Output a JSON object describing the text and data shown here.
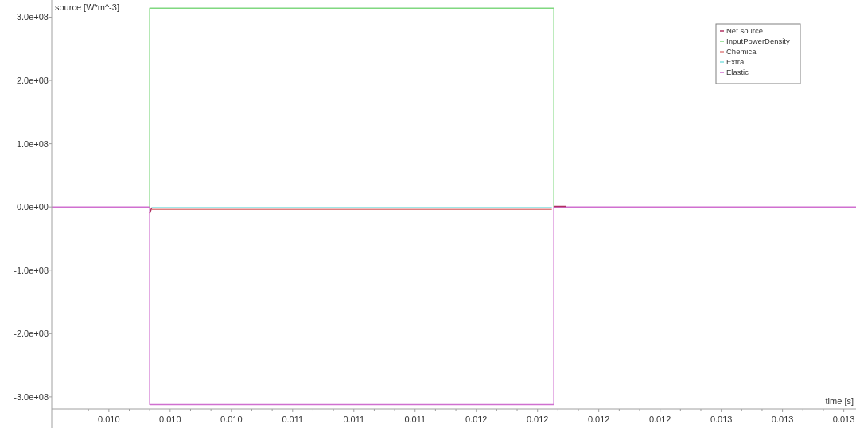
{
  "chart_data": {
    "type": "line",
    "xlabel": "time [s]",
    "ylabel": "source [W*m^-3]",
    "legend": "top right",
    "marker": "none",
    "line_style": "solid",
    "grid": false,
    "xlim": [
      0.00952,
      0.01346
    ],
    "ylim": [
      -319000000,
      327000000
    ],
    "xticks": [
      {
        "value": 0.0096,
        "label": null
      },
      {
        "value": 0.0097,
        "label": null
      },
      {
        "value": 0.0098,
        "label": "0.010"
      },
      {
        "value": 0.0099,
        "label": null
      },
      {
        "value": 0.01,
        "label": null
      },
      {
        "value": 0.0101,
        "label": "0.010"
      },
      {
        "value": 0.0102,
        "label": null
      },
      {
        "value": 0.0103,
        "label": null
      },
      {
        "value": 0.0104,
        "label": "0.010"
      },
      {
        "value": 0.0105,
        "label": null
      },
      {
        "value": 0.0106,
        "label": null
      },
      {
        "value": 0.0107,
        "label": "0.011"
      },
      {
        "value": 0.0108,
        "label": null
      },
      {
        "value": 0.0109,
        "label": null
      },
      {
        "value": 0.011,
        "label": "0.011"
      },
      {
        "value": 0.0111,
        "label": null
      },
      {
        "value": 0.0112,
        "label": null
      },
      {
        "value": 0.0113,
        "label": "0.011"
      },
      {
        "value": 0.0114,
        "label": null
      },
      {
        "value": 0.0115,
        "label": null
      },
      {
        "value": 0.0116,
        "label": "0.012"
      },
      {
        "value": 0.0117,
        "label": null
      },
      {
        "value": 0.0118,
        "label": null
      },
      {
        "value": 0.0119,
        "label": "0.012"
      },
      {
        "value": 0.012,
        "label": null
      },
      {
        "value": 0.0121,
        "label": null
      },
      {
        "value": 0.0122,
        "label": "0.012"
      },
      {
        "value": 0.0123,
        "label": null
      },
      {
        "value": 0.0124,
        "label": null
      },
      {
        "value": 0.0125,
        "label": "0.012"
      },
      {
        "value": 0.0126,
        "label": null
      },
      {
        "value": 0.0127,
        "label": null
      },
      {
        "value": 0.0128,
        "label": "0.013"
      },
      {
        "value": 0.0129,
        "label": null
      },
      {
        "value": 0.013,
        "label": null
      },
      {
        "value": 0.0131,
        "label": "0.013"
      },
      {
        "value": 0.0132,
        "label": null
      },
      {
        "value": 0.0133,
        "label": null
      },
      {
        "value": 0.0134,
        "label": "0.013"
      }
    ],
    "yticks": [
      {
        "value": -300000000,
        "label": "-3.0e+08"
      },
      {
        "value": -200000000,
        "label": "-2.0e+08"
      },
      {
        "value": -100000000,
        "label": "-1.0e+08"
      },
      {
        "value": 0,
        "label": "0.0e+00"
      },
      {
        "value": 100000000,
        "label": "1.0e+08"
      },
      {
        "value": 200000000,
        "label": "2.0e+08"
      },
      {
        "value": 300000000,
        "label": "3.0e+08"
      }
    ],
    "series": [
      {
        "name": "Net source",
        "color": "#b03060",
        "x": [
          0.01,
          0.01001,
          0.011,
          0.01198,
          0.01204
        ],
        "values": [
          -10000000,
          -1000000,
          null,
          1000000,
          1000000
        ]
      },
      {
        "name": "InputPowerDensity",
        "color": "#80d880",
        "x": [
          0.01,
          0.01,
          0.01198,
          0.01198
        ],
        "values": [
          0,
          314000000,
          314000000,
          0
        ]
      },
      {
        "name": "Chemical",
        "color": "#e08080",
        "x": [
          0.01001,
          0.01197
        ],
        "values": [
          -4000000,
          -4000000
        ]
      },
      {
        "name": "Extra",
        "color": "#80e0e0",
        "x": [
          0.01001,
          0.01197
        ],
        "values": [
          -1000000,
          -1000000
        ]
      },
      {
        "name": "Elastic",
        "color": "#d070d0",
        "x": [
          0.00952,
          0.01,
          0.01,
          0.01198,
          0.01198,
          0.01346
        ],
        "values": [
          0,
          0,
          -312000000,
          -312000000,
          0,
          0
        ]
      }
    ]
  }
}
